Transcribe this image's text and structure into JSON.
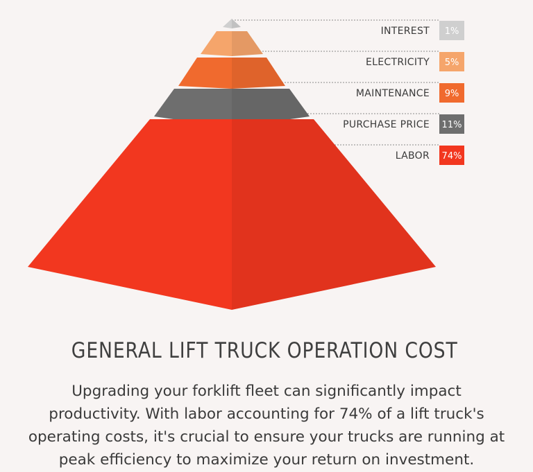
{
  "chart_data": {
    "type": "pyramid",
    "title": "GENERAL LIFT TRUCK OPERATION COST",
    "categories": [
      "INTEREST",
      "ELECTRICITY",
      "MAINTENANCE",
      "PURCHASE PRICE",
      "LABOR"
    ],
    "values": [
      1,
      5,
      9,
      11,
      74
    ],
    "value_labels": [
      "1%",
      "5%",
      "9%",
      "11%",
      "74%"
    ],
    "colors": {
      "INTEREST": "#cfcfcf",
      "ELECTRICITY": "#f5a56b",
      "MAINTENANCE": "#f06a2e",
      "PURCHASE PRICE": "#6e6e6e",
      "LABOR": "#f2371f"
    },
    "legend": "right"
  },
  "description": "Upgrading your forklift fleet can significantly impact productivity. With labor accounting for 74% of a lift truck's operating costs, it's crucial to ensure your trucks are running at peak efficiency to maximize your return on investment."
}
